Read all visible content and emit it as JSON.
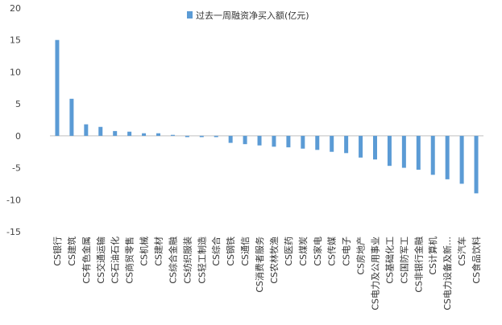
{
  "chart_data": {
    "type": "bar",
    "title": "",
    "xlabel": "",
    "ylabel": "",
    "ylim": [
      -15,
      20
    ],
    "yticks": [
      20,
      15,
      10,
      5,
      0,
      -5,
      -10,
      -15
    ],
    "grid": false,
    "legend_position": "top",
    "colors": {
      "bar": "#5B9BD5",
      "axis": "#bfbfbf"
    },
    "categories": [
      "CS银行",
      "CS建筑",
      "CS有色金属",
      "CS交通运输",
      "CS石油石化",
      "CS商贸零售",
      "CS机械",
      "CS建材",
      "CS综合金融",
      "CS纺织服装",
      "CS轻工制造",
      "CS综合",
      "CS钢铁",
      "CS通信",
      "CS消费者服务",
      "CS农林牧渔",
      "CS医药",
      "CS煤炭",
      "CS家电",
      "CS传媒",
      "CS电子",
      "CS房地产",
      "CS电力及公用事业",
      "CS基础化工",
      "CS国防军工",
      "CS非银行金融",
      "CS计算机",
      "CS电力设备及新…",
      "CS汽车",
      "CS食品饮料"
    ],
    "series": [
      {
        "name": "过去一周融资净买入额(亿元)",
        "values": [
          15.0,
          5.8,
          1.8,
          1.4,
          0.75,
          0.65,
          0.4,
          0.4,
          0.15,
          -0.2,
          -0.2,
          -0.2,
          -1.1,
          -1.3,
          -1.5,
          -1.7,
          -1.8,
          -2.0,
          -2.2,
          -2.5,
          -2.7,
          -3.4,
          -3.7,
          -4.7,
          -5.0,
          -5.3,
          -6.1,
          -6.8,
          -7.5,
          -9.0
        ]
      }
    ]
  }
}
